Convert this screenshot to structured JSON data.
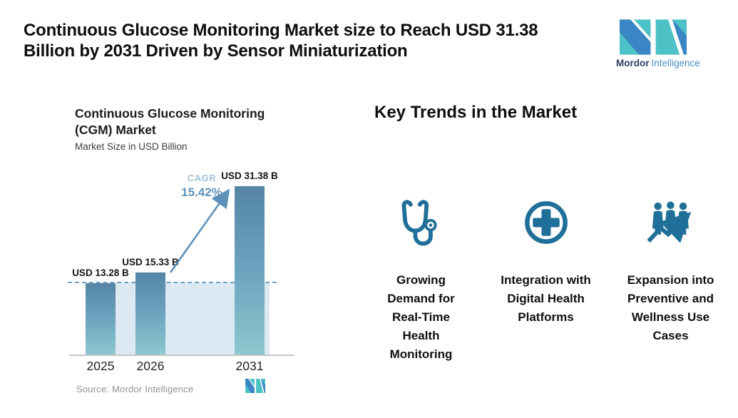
{
  "header": {
    "title_line1": "Continuous Glucose Monitoring Market size to Reach USD 31.38",
    "title_line2": "Billion by 2031 Driven by Sensor Miniaturization",
    "brand": {
      "bold": "Mordor",
      "light": "Intelligence"
    }
  },
  "chart": {
    "title_line1": "Continuous Glucose Monitoring",
    "title_line2": "(CGM) Market",
    "subtitle": "Market Size in USD Billion",
    "cagr_label": "CAGR",
    "cagr_value": "15.42%",
    "source": "Source: Mordor Intelligence"
  },
  "chart_data": {
    "type": "bar",
    "title": "Continuous Glucose Monitoring (CGM) Market",
    "ylabel": "Market Size in USD Billion",
    "categories": [
      "2025",
      "2026",
      "2031"
    ],
    "values": [
      13.28,
      15.33,
      31.38
    ],
    "bar_labels": [
      "USD 13.28 B",
      "USD 15.33 B",
      "USD 31.38 B"
    ],
    "cagr_percent": 15.42,
    "dashed_reference_value": 13.28,
    "ylim": [
      0,
      33
    ],
    "grid": "off",
    "legend": "none"
  },
  "trends": {
    "heading": "Key Trends in the Market",
    "items": [
      {
        "icon": "stethoscope-icon",
        "label": "Growing\nDemand for\nReal-Time\nHealth\nMonitoring"
      },
      {
        "icon": "medical-cross-icon",
        "label": "Integration with\nDigital Health\nPlatforms"
      },
      {
        "icon": "people-growth-arrow-icon",
        "label": "Expansion into\nPreventive and\nWellness Use\nCases"
      }
    ]
  },
  "colors": {
    "brand_teal": "#4cc2c6",
    "brand_blue": "#3a86c4",
    "brand_navy": "#2c3e63",
    "brand_light_blue": "#4a90c8",
    "icon": "#1f6f99",
    "bar_top": "#5585a6",
    "bar_mid": "#6ea5bf",
    "bar_bottom": "#8dc7ce",
    "band": "#dde9f2",
    "dash": "#6fa0c4",
    "arrow": "#5d91ba",
    "cagr_label": "#a3c0d8",
    "cagr_value": "#6193b9",
    "axis": "#c3c6c8",
    "source_gray": "#8e9294"
  }
}
